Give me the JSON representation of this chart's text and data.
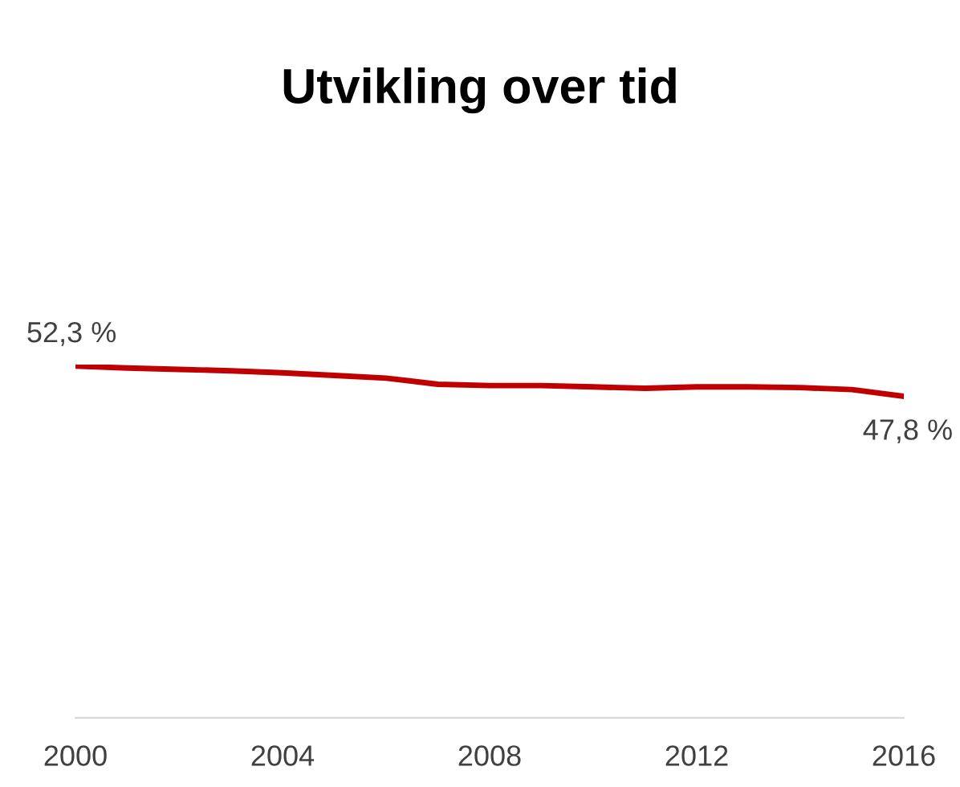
{
  "chart_data": {
    "type": "line",
    "title": "Utvikling over tid",
    "x": [
      2000,
      2001,
      2002,
      2003,
      2004,
      2005,
      2006,
      2007,
      2008,
      2009,
      2010,
      2011,
      2012,
      2013,
      2014,
      2015,
      2016
    ],
    "series": [
      {
        "color": "#c00000",
        "values": [
          52.3,
          52.0,
          51.8,
          51.6,
          51.3,
          50.9,
          50.5,
          49.6,
          49.4,
          49.4,
          49.2,
          49.0,
          49.2,
          49.2,
          49.1,
          48.8,
          47.8
        ],
        "value_labels": [
          "52,3 %",
          null,
          null,
          null,
          null,
          null,
          null,
          null,
          null,
          null,
          null,
          null,
          null,
          null,
          null,
          null,
          "47,8 %"
        ]
      }
    ],
    "xlim": [
      2000,
      2016
    ],
    "xticks": [
      2000,
      2004,
      2008,
      2012,
      2016
    ],
    "tick_labels": "x",
    "grid": false,
    "legend": false
  }
}
